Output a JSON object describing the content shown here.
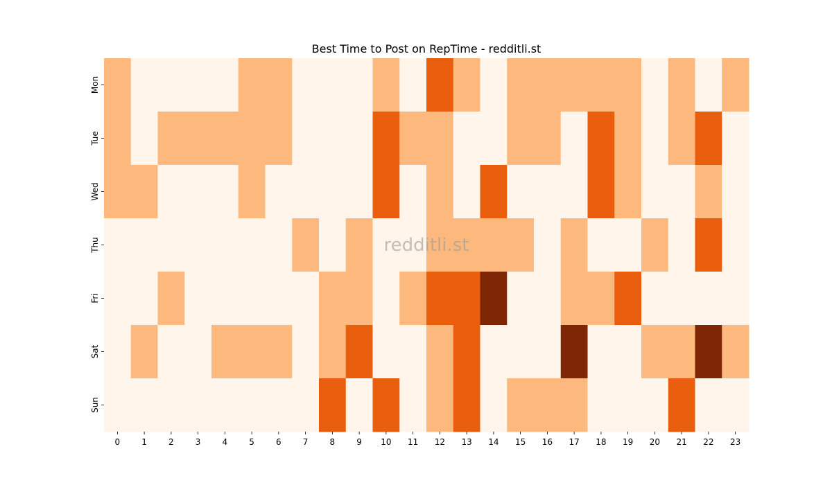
{
  "chart_data": {
    "type": "heatmap",
    "title": "Best Time to Post on RepTime - redditli.st",
    "watermark": "redditli.st",
    "x": [
      "0",
      "1",
      "2",
      "3",
      "4",
      "5",
      "6",
      "7",
      "8",
      "9",
      "10",
      "11",
      "12",
      "13",
      "14",
      "15",
      "16",
      "17",
      "18",
      "19",
      "20",
      "21",
      "22",
      "23"
    ],
    "y": [
      "Mon",
      "Tue",
      "Wed",
      "Thu",
      "Fri",
      "Sat",
      "Sun"
    ],
    "values": [
      [
        1,
        0,
        0,
        0,
        0,
        1,
        1,
        0,
        0,
        0,
        1,
        0,
        2,
        1,
        0,
        1,
        1,
        1,
        1,
        1,
        0,
        1,
        0,
        1
      ],
      [
        1,
        0,
        1,
        1,
        1,
        1,
        1,
        0,
        0,
        0,
        2,
        1,
        1,
        0,
        0,
        1,
        1,
        0,
        2,
        1,
        0,
        1,
        2,
        0
      ],
      [
        1,
        1,
        0,
        0,
        0,
        1,
        0,
        0,
        0,
        0,
        2,
        0,
        1,
        0,
        2,
        0,
        0,
        0,
        2,
        1,
        0,
        0,
        1,
        0
      ],
      [
        0,
        0,
        0,
        0,
        0,
        0,
        0,
        1,
        0,
        1,
        0,
        0,
        1,
        1,
        1,
        1,
        0,
        1,
        0,
        0,
        1,
        0,
        2,
        0
      ],
      [
        0,
        0,
        1,
        0,
        0,
        0,
        0,
        0,
        1,
        1,
        0,
        1,
        2,
        2,
        3,
        0,
        0,
        1,
        1,
        2,
        0,
        0,
        0,
        0
      ],
      [
        0,
        1,
        0,
        0,
        1,
        1,
        1,
        0,
        1,
        2,
        0,
        0,
        1,
        2,
        0,
        0,
        0,
        3,
        0,
        0,
        1,
        1,
        3,
        1
      ],
      [
        0,
        0,
        0,
        0,
        0,
        0,
        0,
        0,
        2,
        0,
        2,
        0,
        1,
        2,
        0,
        1,
        1,
        1,
        0,
        0,
        0,
        2,
        0,
        0
      ]
    ],
    "value_range": [
      0,
      3
    ],
    "colormap": [
      "#fff5eb",
      "#fdb97d",
      "#e95e0d",
      "#7f2704"
    ],
    "grid": false,
    "legend": "none"
  }
}
